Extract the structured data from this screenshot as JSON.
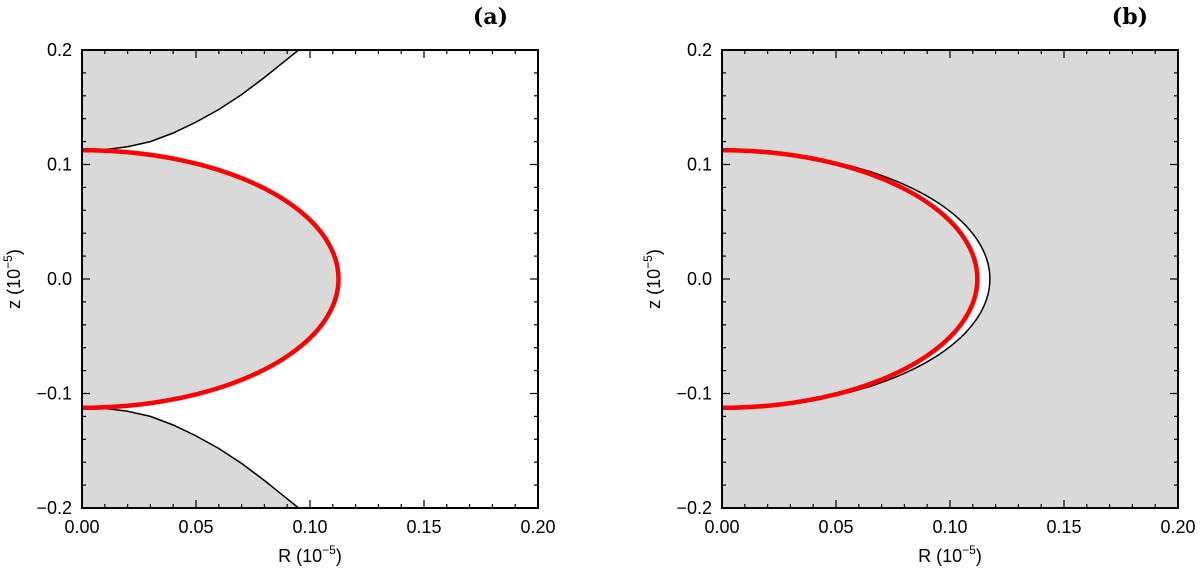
{
  "colors": {
    "region_fill": "#d9d9d9",
    "boundary": "#000000",
    "red_curve": "#ff0000",
    "background": "#ffffff"
  },
  "chart_data": [
    {
      "type": "line",
      "panel_label": "(a)",
      "xlabel": "R (10",
      "xlabel_exp": "−5",
      "xlabel_close": ")",
      "ylabel": "z (10",
      "ylabel_exp": "−5",
      "ylabel_close": ")",
      "xlim": [
        0,
        0.2
      ],
      "ylim": [
        -0.2,
        0.2
      ],
      "xticks": [
        "0.00",
        "0.05",
        "0.10",
        "0.15",
        "0.20"
      ],
      "yticks": [
        "−0.2",
        "−0.1",
        "0.0",
        "0.1",
        "0.2"
      ],
      "grid": false,
      "shaded_region": "inside red ellipse and beyond black hyperbola branches",
      "red_curve": {
        "center": [
          0,
          0
        ],
        "r_semi_axis": 0.1125,
        "z_semi_axis": 0.1125
      },
      "upper_boundary": [
        [
          0.0,
          0.1125
        ],
        [
          0.01,
          0.113
        ],
        [
          0.02,
          0.1155
        ],
        [
          0.03,
          0.12
        ],
        [
          0.04,
          0.1275
        ],
        [
          0.05,
          0.137
        ],
        [
          0.06,
          0.148
        ],
        [
          0.07,
          0.161
        ],
        [
          0.08,
          0.176
        ],
        [
          0.09,
          0.192
        ],
        [
          0.095,
          0.2
        ]
      ],
      "lower_boundary": [
        [
          0.0,
          -0.1125
        ],
        [
          0.01,
          -0.113
        ],
        [
          0.02,
          -0.1155
        ],
        [
          0.03,
          -0.12
        ],
        [
          0.04,
          -0.1275
        ],
        [
          0.05,
          -0.137
        ],
        [
          0.06,
          -0.148
        ],
        [
          0.07,
          -0.161
        ],
        [
          0.08,
          -0.176
        ],
        [
          0.09,
          -0.192
        ],
        [
          0.095,
          -0.2
        ]
      ]
    },
    {
      "type": "line",
      "panel_label": "(b)",
      "xlabel": "R (10",
      "xlabel_exp": "−5",
      "xlabel_close": ")",
      "ylabel": "z (10",
      "ylabel_exp": "−5",
      "ylabel_close": ")",
      "xlim": [
        0,
        0.2
      ],
      "ylim": [
        -0.2,
        0.2
      ],
      "xticks": [
        "0.00",
        "0.05",
        "0.10",
        "0.15",
        "0.20"
      ],
      "yticks": [
        "−0.2",
        "−0.1",
        "0.0",
        "0.1",
        "0.2"
      ],
      "grid": false,
      "shaded_region": "entire plot area",
      "red_curve": {
        "center": [
          0,
          0
        ],
        "r_semi_axis": 0.112,
        "z_semi_axis": 0.1125
      },
      "black_curve": {
        "center": [
          0,
          0
        ],
        "r_semi_axis": 0.1175,
        "z_semi_axis": 0.1125
      }
    }
  ]
}
